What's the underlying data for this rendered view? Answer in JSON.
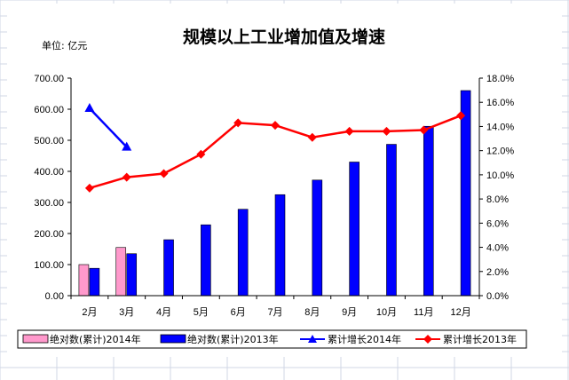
{
  "chart_data": {
    "type": "bar+line",
    "title": "规模以上工业增加值及增速",
    "unit_label": "单位: 亿元",
    "categories": [
      "2月",
      "3月",
      "4月",
      "5月",
      "6月",
      "7月",
      "8月",
      "9月",
      "10月",
      "11月",
      "12月"
    ],
    "y_left": {
      "range": [
        0,
        700
      ],
      "ticks": [
        "0.00",
        "100.00",
        "200.00",
        "300.00",
        "400.00",
        "500.00",
        "600.00",
        "700.00"
      ]
    },
    "y_right": {
      "range": [
        0,
        18
      ],
      "ticks": [
        "0.0%",
        "2.0%",
        "4.0%",
        "6.0%",
        "8.0%",
        "10.0%",
        "12.0%",
        "14.0%",
        "16.0%",
        "18.0%"
      ]
    },
    "series": [
      {
        "name": "绝对数(累计)2014年",
        "kind": "bar",
        "axis": "left",
        "color": "#ff99cc",
        "values": [
          100,
          155,
          null,
          null,
          null,
          null,
          null,
          null,
          null,
          null,
          null
        ]
      },
      {
        "name": "绝对数(累计)2013年",
        "kind": "bar",
        "axis": "left",
        "color": "#0000ff",
        "values": [
          88,
          135,
          180,
          228,
          278,
          325,
          372,
          430,
          487,
          545,
          660
        ]
      },
      {
        "name": "累计增长2014年",
        "kind": "line",
        "axis": "right",
        "color": "#0000ff",
        "marker": "triangle",
        "values": [
          15.5,
          12.3,
          null,
          null,
          null,
          null,
          null,
          null,
          null,
          null,
          null
        ]
      },
      {
        "name": "累计增长2013年",
        "kind": "line",
        "axis": "right",
        "color": "#ff0000",
        "marker": "diamond",
        "values": [
          8.9,
          9.8,
          10.1,
          11.7,
          14.3,
          14.1,
          13.1,
          13.6,
          13.6,
          13.7,
          14.9
        ]
      }
    ],
    "legend_position": "bottom",
    "grid": false
  }
}
